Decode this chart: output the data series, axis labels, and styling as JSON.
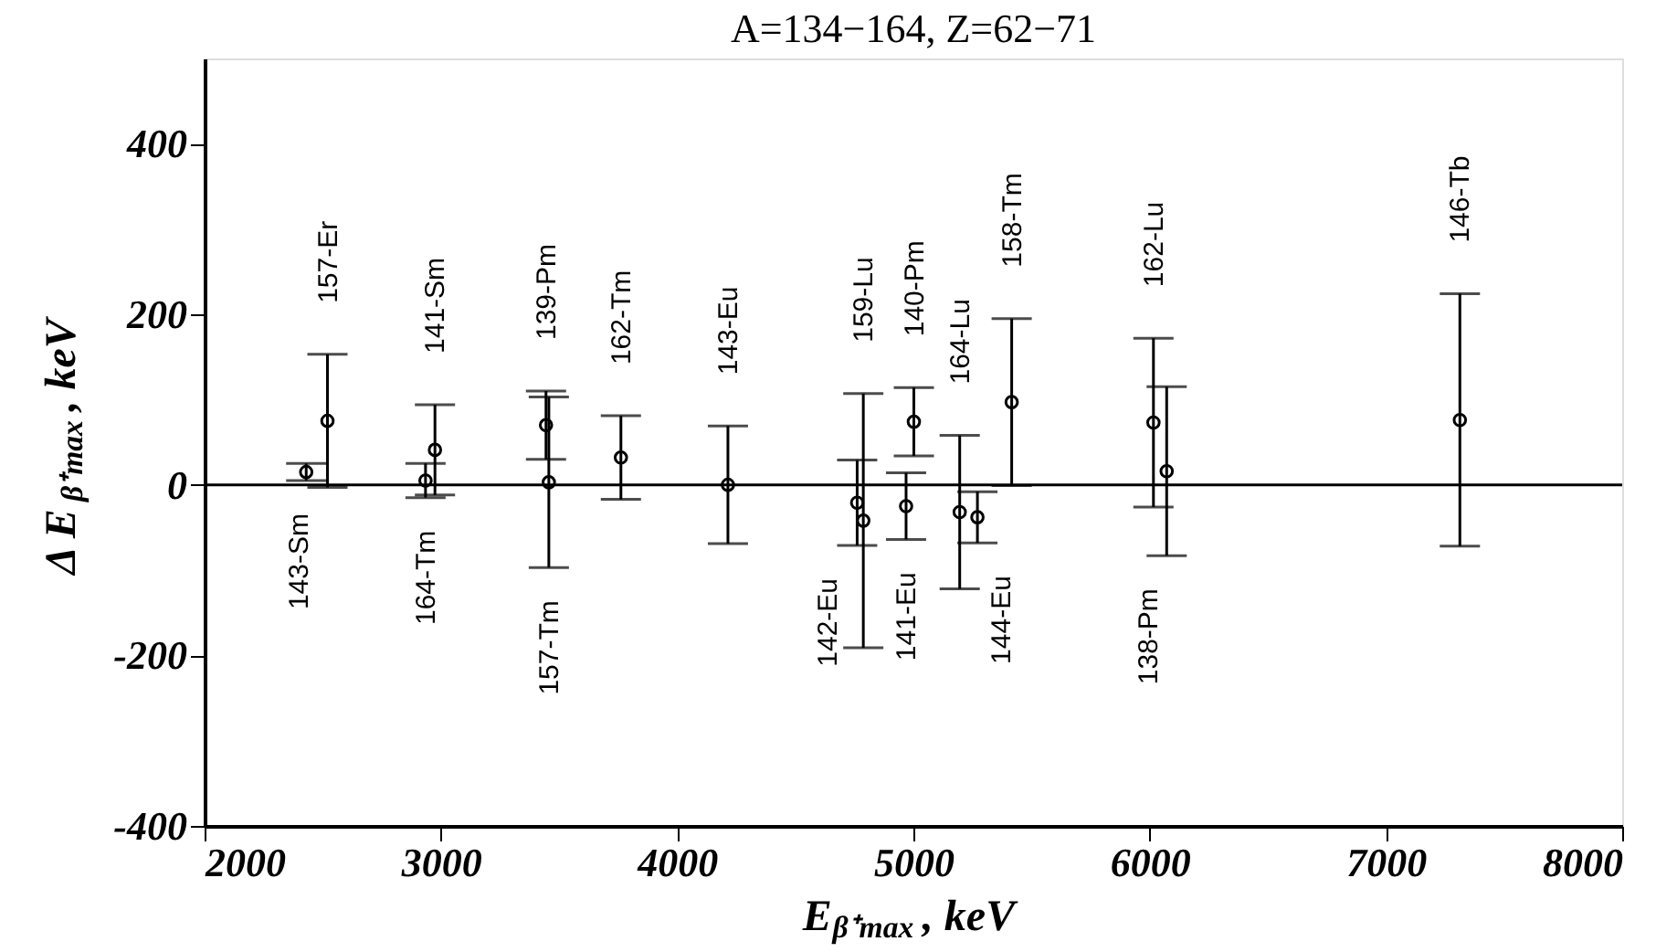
{
  "chart_data": {
    "type": "scatter",
    "title": "A=134−164, Z=62−71",
    "xlabel": "E$_{β⁺max}$, keV",
    "ylabel": "Δ E$_{β⁺max}$, keV",
    "x": [
      2430,
      2520,
      2935,
      2975,
      3445,
      3457,
      3762,
      4215,
      4762,
      4788,
      4969,
      5002,
      5196,
      5271,
      5416,
      6016,
      6072,
      7313
    ],
    "values": [
      15,
      75,
      5,
      41,
      70,
      3,
      32,
      0,
      -21,
      -42,
      -25,
      74,
      -32,
      -38,
      97,
      73,
      16,
      76
    ],
    "errors": [
      10,
      78,
      20,
      53,
      40,
      100,
      49,
      69,
      50,
      149,
      39,
      40,
      90,
      30,
      98,
      99,
      99,
      148
    ],
    "color": "#000000",
    "marker": "circle",
    "xlim": [
      2000,
      8000
    ],
    "xticks": [
      {
        "value": 2000,
        "label": "2000"
      },
      {
        "value": 3000,
        "label": "3000"
      },
      {
        "value": 4000,
        "label": "4000"
      },
      {
        "value": 5000,
        "label": "5000"
      },
      {
        "value": 6000,
        "label": "6000"
      },
      {
        "value": 7000,
        "label": "7000"
      },
      {
        "value": 8000,
        "label": "8000"
      }
    ],
    "ylim": [
      -400,
      500
    ],
    "yticks": [
      -400,
      -200,
      0,
      200,
      400
    ],
    "grid": false,
    "ref_lines": [
      {
        "axis": "y",
        "value": 0
      }
    ],
    "annotations": [
      "143-Sm",
      "157-Er",
      "164-Tm",
      "141-Sm",
      "139-Pm",
      "157-Tm",
      "162-Tm",
      "143-Eu",
      "142-Eu",
      "159-Lu",
      "141-Eu",
      "140-Pm",
      "164-Lu",
      "144-Eu",
      "158-Tm",
      "162-Lu",
      "138-Pm",
      "146-Tb"
    ]
  }
}
